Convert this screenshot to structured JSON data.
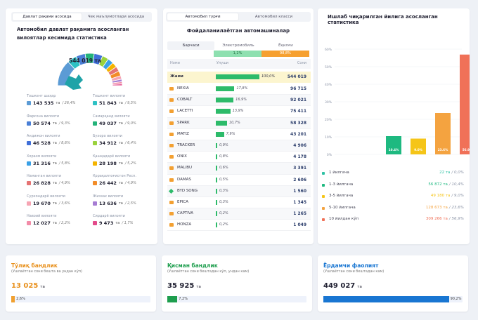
{
  "left": {
    "tabs": [
      "Давлат рақами асосида",
      "Чек маълумотлари асосида"
    ],
    "title": "Автомобил давлат рақамига асосланган вилоятлар кесимида статистика",
    "total": "544 019 та",
    "regions": [
      {
        "name": "Тошкент шаҳар",
        "value": "143 535",
        "unit": "та",
        "pct": "/ 26,4%",
        "color": "#5b9bd5"
      },
      {
        "name": "Тошкент вилояти",
        "value": "51 843",
        "unit": "та",
        "pct": "/ 9,5%",
        "color": "#2ec1c4"
      },
      {
        "name": "Фарғона вилояти",
        "value": "50 574",
        "unit": "та",
        "pct": "/ 9,3%",
        "color": "#4a7fd6"
      },
      {
        "name": "Самарқанд вилояти",
        "value": "49 037",
        "unit": "та",
        "pct": "/ 9,0%",
        "color": "#24b37a"
      },
      {
        "name": "Андижон вилояти",
        "value": "46 528",
        "unit": "та",
        "pct": "/ 8,6%",
        "color": "#3f6fd8"
      },
      {
        "name": "Бухоро вилояти",
        "value": "34 912",
        "unit": "та",
        "pct": "/ 6,4%",
        "color": "#9ad23c"
      },
      {
        "name": "Хоразм вилояти",
        "value": "31 316",
        "unit": "та",
        "pct": "/ 5,8%",
        "color": "#3aa0e6"
      },
      {
        "name": "Қашқадарё вилояти",
        "value": "28 198",
        "unit": "та",
        "pct": "/ 5,2%",
        "color": "#f4b400"
      },
      {
        "name": "Наманган вилояти",
        "value": "26 828",
        "unit": "та",
        "pct": "/ 4,9%",
        "color": "#e57373"
      },
      {
        "name": "Қорақалпоғистон Респ.",
        "value": "26 442",
        "unit": "та",
        "pct": "/ 4,9%",
        "color": "#f28c28"
      },
      {
        "name": "Сурхондарё вилояти",
        "value": "19 670",
        "unit": "та",
        "pct": "/ 3,6%",
        "color": "#f6a5b3"
      },
      {
        "name": "Жиззах вилояти",
        "value": "13 636",
        "unit": "та",
        "pct": "/ 2,5%",
        "color": "#a67cd3"
      },
      {
        "name": "Навоий вилояти",
        "value": "12 027",
        "unit": "та",
        "pct": "/ 2,2%",
        "color": "#f28ca8"
      },
      {
        "name": "Сирдарё вилояти",
        "value": "9 473",
        "unit": "та",
        "pct": "/ 1,7%",
        "color": "#e34a8a"
      }
    ]
  },
  "middle": {
    "tabs": [
      "Автомобил турғи",
      "Автомобил класси"
    ],
    "title": "Фойдаланилаётган автомашиналар",
    "fuel_tabs": [
      "Барчаси",
      "Электромобиль",
      "Ёқилғи"
    ],
    "fuel_pcts": [
      "1,2%",
      "98,8%"
    ],
    "headers": [
      "Номи",
      "Улуши",
      "Сони"
    ],
    "total_row": {
      "name": "Жами",
      "pct": "100,0%",
      "count": "544 019"
    },
    "cars": [
      {
        "name": "NEXIA",
        "pct": "17,8%",
        "share": 17.8,
        "count": "96 715",
        "icon": "car"
      },
      {
        "name": "COBALT",
        "pct": "16,9%",
        "share": 16.9,
        "count": "92 021",
        "icon": "car"
      },
      {
        "name": "LACETTI",
        "pct": "13,9%",
        "share": 13.9,
        "count": "75 411",
        "icon": "car"
      },
      {
        "name": "SPARK",
        "pct": "10,7%",
        "share": 10.7,
        "count": "58 328",
        "icon": "car"
      },
      {
        "name": "MATIZ",
        "pct": "7,9%",
        "share": 7.9,
        "count": "43 201",
        "icon": "car"
      },
      {
        "name": "TRACKER",
        "pct": "0,9%",
        "share": 0.9,
        "count": "4 906",
        "icon": "car"
      },
      {
        "name": "ONIX",
        "pct": "0,8%",
        "share": 0.8,
        "count": "4 178",
        "icon": "car"
      },
      {
        "name": "MALIBU",
        "pct": "0,6%",
        "share": 0.6,
        "count": "3 391",
        "icon": "car"
      },
      {
        "name": "DAMAS",
        "pct": "0,5%",
        "share": 0.5,
        "count": "2 606",
        "icon": "car"
      },
      {
        "name": "BYD SONG",
        "pct": "0,3%",
        "share": 0.3,
        "count": "1 560",
        "icon": "electric"
      },
      {
        "name": "EPICA",
        "pct": "0,3%",
        "share": 0.3,
        "count": "1 345",
        "icon": "car"
      },
      {
        "name": "CAPTIVA",
        "pct": "0,2%",
        "share": 0.2,
        "count": "1 265",
        "icon": "car"
      },
      {
        "name": "HONZA",
        "pct": "0,2%",
        "share": 0.2,
        "count": "1 049",
        "icon": "car"
      }
    ]
  },
  "right": {
    "title": "Ишлаб чиқарилган йилига асосланган статистика",
    "legend": [
      {
        "name": "1 йилгача",
        "value": "22 та",
        "pct": "/ 0,0%",
        "color": "#2ec1a4"
      },
      {
        "name": "1-3 йилгача",
        "value": "56 872 та",
        "pct": "/ 10,4%",
        "color": "#1eb980"
      },
      {
        "name": "3-5 йилгача",
        "value": "49 180 та",
        "pct": "/ 9,0%",
        "color": "#f5c518"
      },
      {
        "name": "5-10 йилгача",
        "value": "128 673 та",
        "pct": "/ 23,6%",
        "color": "#f4a340"
      },
      {
        "name": "10 йилдан кўп",
        "value": "309 266 та",
        "pct": "/ 56,9%",
        "color": "#f07158"
      }
    ]
  },
  "chart_data": {
    "type": "bar",
    "title": "Ишлаб чиқарилган йилига асосланган статистика",
    "categories": [
      "1 йилгача",
      "1-3 йилгача",
      "3-5 йилгача",
      "5-10 йилгача",
      "10 йилдан кўп"
    ],
    "values": [
      0.0,
      10.4,
      9.0,
      23.6,
      56.9
    ],
    "data_labels": [
      "",
      "10.4%",
      "9.0%",
      "23.6%",
      "56.9%"
    ],
    "colors": [
      "#2ec1a4",
      "#1eb980",
      "#f5c518",
      "#f4a340",
      "#f07158"
    ],
    "yticks": [
      "0%",
      "10%",
      "20%",
      "30%",
      "40%",
      "50%",
      "60%"
    ],
    "ylim": [
      0,
      60
    ]
  },
  "bottom": [
    {
      "title": "Тўлиқ бандлик",
      "sub": "(Ушлаётган сони бешта ва ундан кўп)",
      "value": "13 025",
      "unit": "та",
      "pct": "2,6%",
      "fraction": 0.026,
      "color": "#f0a030",
      "title_color": "#e8901c"
    },
    {
      "title": "Қисман бандлик",
      "sub": "(Ушлаётган сони бештадан кўп, ундан кам)",
      "value": "35 925",
      "unit": "та",
      "pct": "7,2%",
      "fraction": 0.072,
      "color": "#1e9e4e",
      "title_color": "#1e9e4e"
    },
    {
      "title": "Ёрдамчи фаолият",
      "sub": "(Ушлаётган сони бештадан кам)",
      "value": "449 027",
      "unit": "та",
      "pct": "90,2%",
      "fraction": 0.902,
      "color": "#1976d2",
      "title_color": "#1976d2"
    }
  ]
}
